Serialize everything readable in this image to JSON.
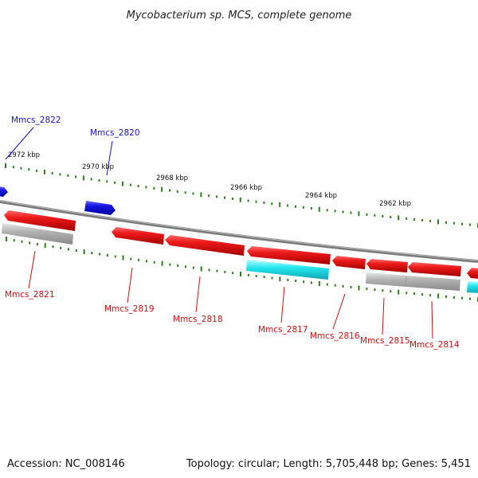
{
  "title": "Mycobacterium sp. MCS, complete genome",
  "accession": "Accession: NC_008146",
  "topology": "Topology: circular; Length: 5,705,448 bp; Genes: 5,451",
  "colors": {
    "backbone": "#7a7a7a",
    "tick": "#2e7d1e",
    "cds": "#e8101a",
    "cds_forward": "#1414e0",
    "rna_or_pseudo": "#aaaaaa",
    "misc_feature": "#22e6ee",
    "label_forward": "#1414c8",
    "label_reverse": "#cc1010"
  },
  "scale_labels": [
    "2972 kbp",
    "2970 kbp",
    "2968 kbp",
    "2966 kbp",
    "2964 kbp",
    "2962 kbp"
  ],
  "genes_forward": [
    "Mmcs_2822",
    "Mmcs_2820"
  ],
  "genes_reverse": [
    "Mmcs_2821",
    "Mmcs_2819",
    "Mmcs_2818",
    "Mmcs_2817",
    "Mmcs_2816",
    "Mmcs_2815",
    "Mmcs_2814"
  ]
}
